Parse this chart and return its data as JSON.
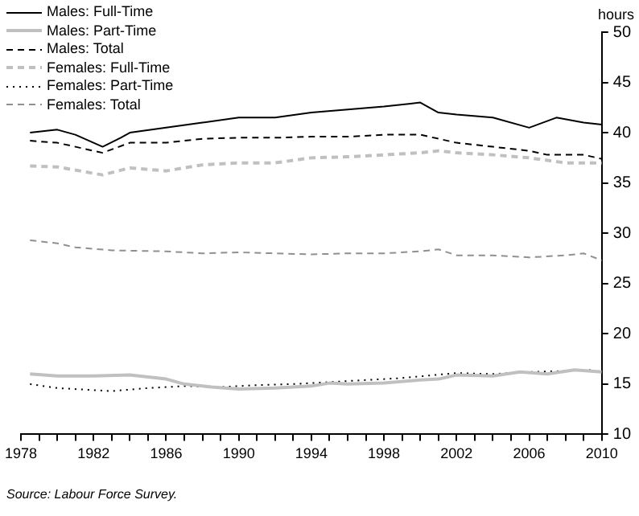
{
  "chart_data": {
    "type": "line",
    "ylabel": "hours",
    "annotations": [
      "Source: Labour Force Survey."
    ],
    "xlim": [
      1978,
      2010
    ],
    "ylim": [
      10,
      50
    ],
    "xticks": [
      1978,
      {
        "value": 1979,
        "label": null
      },
      {
        "value": 1980,
        "label": null
      },
      {
        "value": 1981,
        "label": null
      },
      1982,
      {
        "value": 1983,
        "label": null
      },
      {
        "value": 1984,
        "label": null
      },
      {
        "value": 1985,
        "label": null
      },
      1986,
      {
        "value": 1987,
        "label": null
      },
      {
        "value": 1988,
        "label": null
      },
      {
        "value": 1989,
        "label": null
      },
      1990,
      {
        "value": 1991,
        "label": null
      },
      {
        "value": 1992,
        "label": null
      },
      {
        "value": 1993,
        "label": null
      },
      1994,
      {
        "value": 1995,
        "label": null
      },
      {
        "value": 1996,
        "label": null
      },
      {
        "value": 1997,
        "label": null
      },
      1998,
      {
        "value": 1999,
        "label": null
      },
      {
        "value": 2000,
        "label": null
      },
      {
        "value": 2001,
        "label": null
      },
      2002,
      {
        "value": 2003,
        "label": null
      },
      {
        "value": 2004,
        "label": null
      },
      {
        "value": 2005,
        "label": null
      },
      2006,
      {
        "value": 2007,
        "label": null
      },
      {
        "value": 2008,
        "label": null
      },
      {
        "value": 2009,
        "label": null
      },
      2010
    ],
    "yticks": [
      10,
      15,
      20,
      25,
      30,
      35,
      40,
      45,
      50
    ],
    "grid": false,
    "legend": "top left",
    "marker": "none",
    "series": [
      {
        "name": "Males: Full-Time",
        "color": "#000000",
        "line_style": "solid",
        "x": [
          1978.5,
          1980,
          1981,
          1982.5,
          1983.5,
          1984,
          1986,
          1988,
          1990,
          1992,
          1994,
          1996,
          1998,
          2000,
          2001,
          2002,
          2004,
          2006,
          2007.5,
          2009,
          2010
        ],
        "values": [
          40,
          40.3,
          39.8,
          38.6,
          39.5,
          40,
          40.5,
          41,
          41.5,
          41.5,
          42,
          42.3,
          42.6,
          43,
          42,
          41.8,
          41.5,
          40.5,
          41.5,
          41,
          40.8
        ]
      },
      {
        "name": "Males: Part-Time",
        "color": "#c0c0c0",
        "line_style": "solid",
        "x": [
          1978.5,
          1980,
          1982,
          1984,
          1986,
          1987,
          1988.5,
          1990,
          1992,
          1994,
          1995,
          1996,
          1998,
          2000,
          2001,
          2002,
          2004,
          2005.5,
          2007,
          2008.5,
          2010
        ],
        "values": [
          16,
          15.8,
          15.8,
          15.9,
          15.5,
          15,
          14.7,
          14.5,
          14.6,
          14.8,
          15.1,
          15,
          15.1,
          15.4,
          15.5,
          15.9,
          15.8,
          16.2,
          16,
          16.4,
          16.2
        ]
      },
      {
        "name": "Males: Total",
        "color": "#000000",
        "line_style": "dashed",
        "x": [
          1978.5,
          1980,
          1982.5,
          1984,
          1986,
          1988,
          1990,
          1992,
          1994,
          1996,
          1998,
          2000,
          2002,
          2004,
          2006,
          2007,
          2009,
          2010
        ],
        "values": [
          39.2,
          39,
          38,
          39,
          39,
          39.4,
          39.5,
          39.5,
          39.6,
          39.6,
          39.8,
          39.8,
          39,
          38.6,
          38.2,
          37.8,
          37.8,
          37.4
        ]
      },
      {
        "name": "Females: Full-Time",
        "color": "#c0c0c0",
        "line_style": "dashed",
        "x": [
          1978.5,
          1980,
          1982.5,
          1984,
          1986,
          1988,
          1990,
          1992,
          1994,
          1996,
          1998,
          2000,
          2001,
          2002,
          2004,
          2006,
          2008,
          2010
        ],
        "values": [
          36.7,
          36.6,
          35.8,
          36.5,
          36.2,
          36.8,
          37,
          37,
          37.5,
          37.6,
          37.8,
          38,
          38.2,
          38,
          37.8,
          37.5,
          37,
          37
        ]
      },
      {
        "name": "Females: Part-Time",
        "color": "#000000",
        "line_style": "dotted",
        "x": [
          1978.5,
          1980,
          1982,
          1983,
          1985,
          1987,
          1989,
          1991,
          1993,
          1995,
          1997,
          1999,
          2002,
          2004,
          2006,
          2008,
          2009.5
        ],
        "values": [
          15,
          14.6,
          14.4,
          14.3,
          14.6,
          14.8,
          14.7,
          14.9,
          15,
          15.2,
          15.4,
          15.6,
          16.1,
          16,
          16.2,
          16.3,
          16.4
        ]
      },
      {
        "name": "Females: Total",
        "color": "#909090",
        "line_style": "dashed",
        "x": [
          1978.5,
          1980,
          1981,
          1983,
          1986,
          1988,
          1990,
          1992,
          1994,
          1996,
          1998,
          2000,
          2001,
          2002,
          2004,
          2006,
          2008,
          2009,
          2010
        ],
        "values": [
          29.3,
          29,
          28.6,
          28.3,
          28.2,
          28,
          28.1,
          28,
          27.9,
          28,
          28,
          28.2,
          28.4,
          27.8,
          27.8,
          27.6,
          27.8,
          28,
          27.3
        ]
      }
    ]
  }
}
